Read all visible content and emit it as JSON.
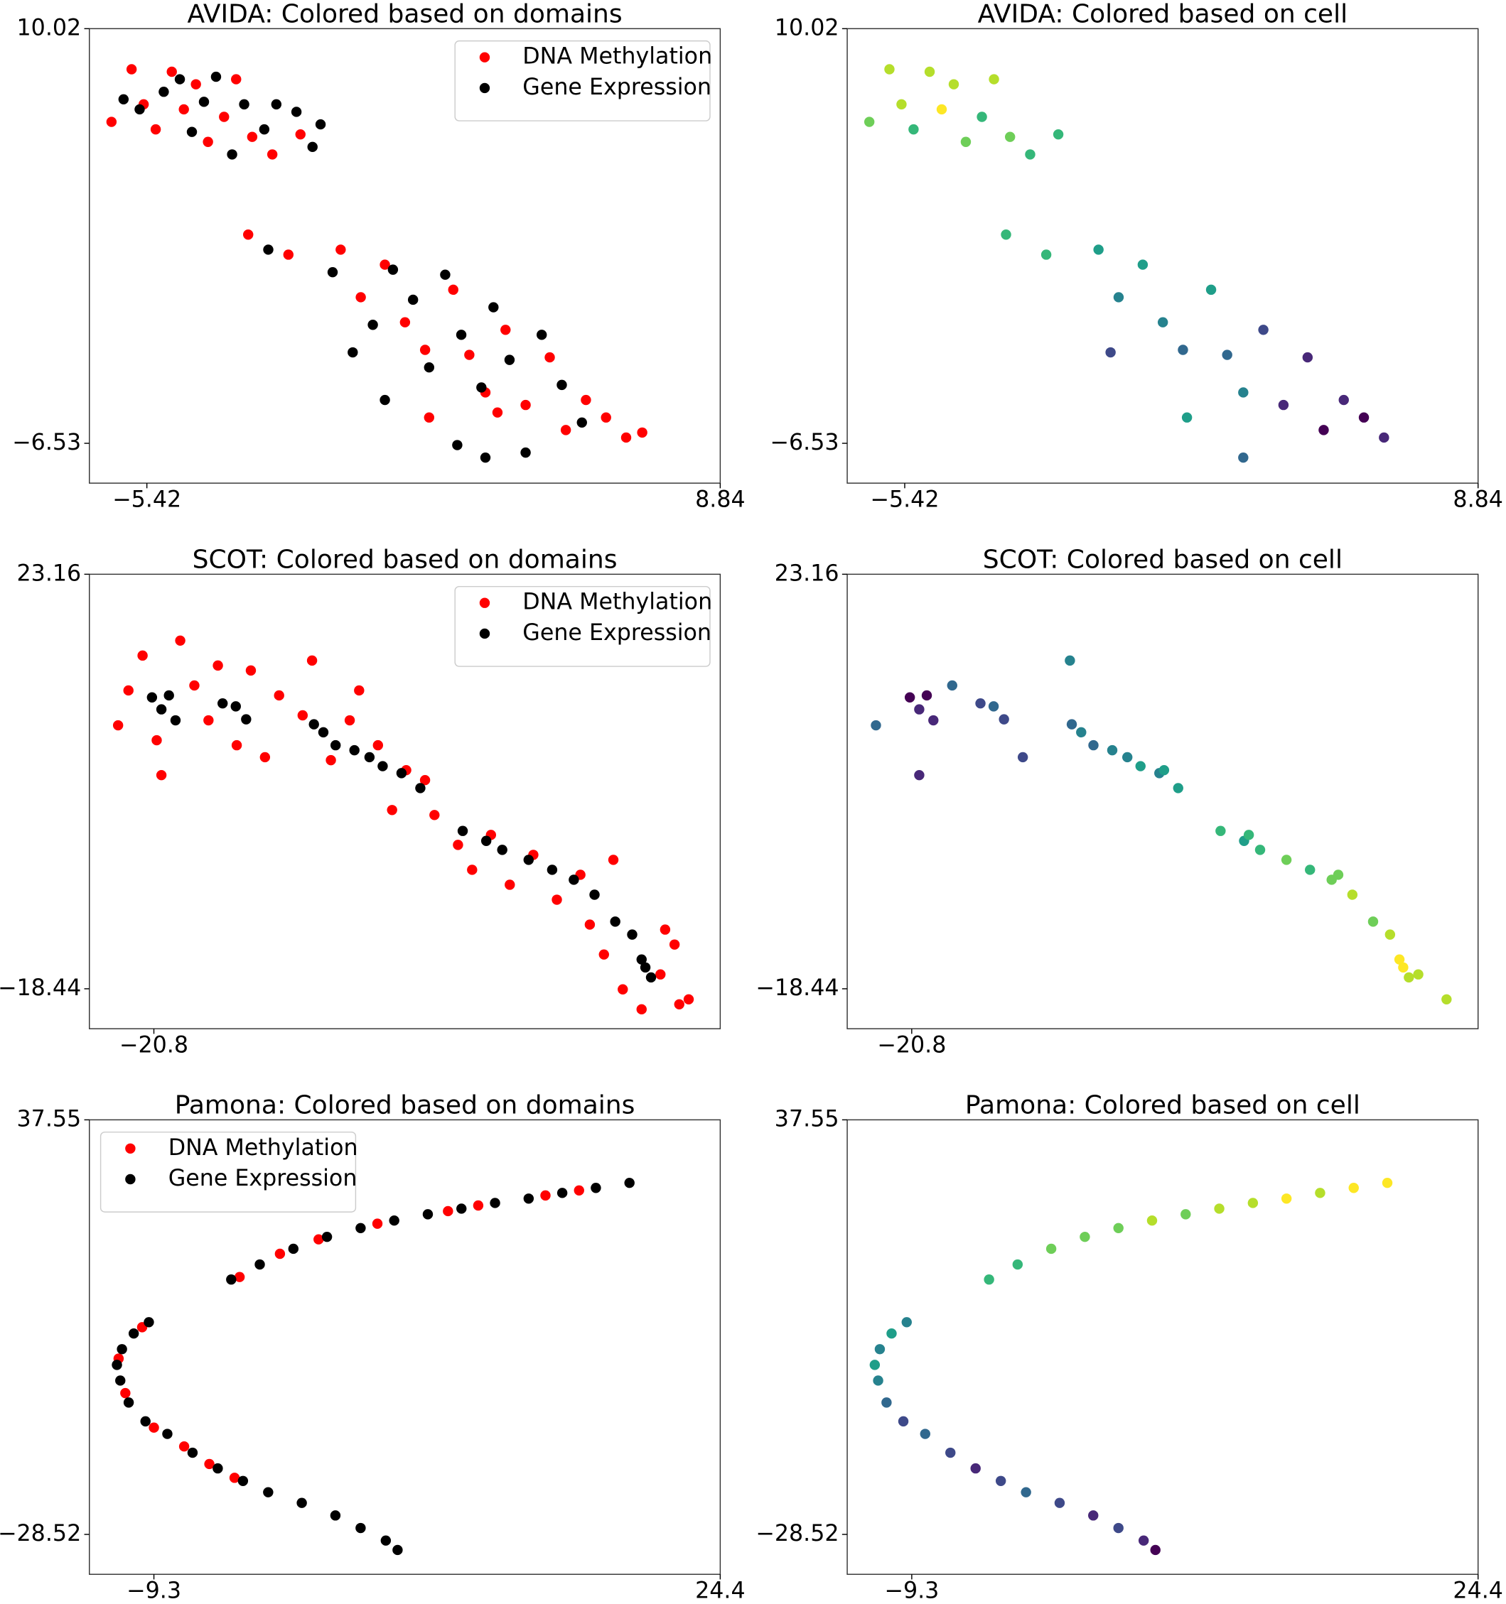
{
  "chart_data": [
    {
      "type": "scatter",
      "title": "AVIDA: Colored based on domains",
      "legend": "upper right",
      "xlim": [
        -6.85,
        8.84
      ],
      "ylim": [
        -8.12,
        10.02
      ],
      "xticks": [
        {
          "value": -5.42,
          "label": "−5.42"
        },
        8.84
      ],
      "yticks": [
        {
          "value": -6.53,
          "label": "−6.53"
        },
        10.02
      ],
      "series": [
        {
          "name": "DNA Methylation",
          "color": "#ff0000",
          "x": [
            -6.3,
            -5.8,
            -5.5,
            -5.2,
            -4.8,
            -4.5,
            -4.2,
            -3.9,
            -3.5,
            -3.2,
            -2.8,
            -2.3,
            -1.6,
            -2.9,
            -1.9,
            -0.6,
            -0.1,
            0.5,
            1.0,
            1.5,
            2.2,
            2.6,
            3.0,
            3.5,
            4.0,
            4.6,
            5.0,
            5.5,
            6.0,
            6.5,
            6.9,
            1.6,
            3.3
          ],
          "y": [
            6.3,
            8.4,
            7.0,
            6.0,
            8.3,
            6.8,
            7.8,
            5.5,
            6.5,
            8.0,
            5.7,
            5.0,
            5.8,
            1.8,
            1.0,
            1.2,
            -0.7,
            0.6,
            -1.7,
            -2.8,
            -0.4,
            -3.0,
            -4.5,
            -2.0,
            -5.0,
            -3.1,
            -6.0,
            -4.8,
            -5.5,
            -6.3,
            -6.1,
            -5.5,
            -5.3
          ]
        },
        {
          "name": "Gene Expression",
          "color": "#000000",
          "x": [
            -6.0,
            -5.6,
            -5.0,
            -4.6,
            -4.3,
            -4.0,
            -3.7,
            -3.3,
            -3.0,
            -2.5,
            -2.2,
            -1.7,
            -1.3,
            -1.1,
            -2.4,
            -0.8,
            -0.3,
            0.2,
            0.7,
            1.2,
            1.6,
            2.0,
            2.4,
            2.9,
            3.2,
            3.6,
            4.0,
            4.4,
            4.9,
            5.4,
            3.0,
            0.5,
            2.3
          ],
          "y": [
            7.2,
            6.8,
            7.5,
            8.0,
            5.9,
            7.1,
            8.1,
            5.0,
            7.0,
            6.0,
            7.0,
            6.7,
            5.3,
            6.2,
            1.2,
            0.3,
            -2.9,
            -1.8,
            0.4,
            -0.8,
            -3.5,
            0.2,
            -2.2,
            -4.3,
            -1.1,
            -3.2,
            -6.9,
            -2.2,
            -4.2,
            -5.7,
            -7.1,
            -4.8,
            -6.6
          ]
        }
      ]
    },
    {
      "type": "scatter",
      "title": "AVIDA: Colored based on cell",
      "xlim": [
        -6.85,
        8.84
      ],
      "ylim": [
        -8.12,
        10.02
      ],
      "xticks": [
        {
          "value": -5.42,
          "label": "−5.42"
        },
        8.84
      ],
      "yticks": [
        {
          "value": -6.53,
          "label": "−6.53"
        },
        10.02
      ],
      "series": [
        {
          "x": [
            -6.3,
            -5.8,
            -5.5,
            -5.2,
            -4.8,
            -4.5,
            -4.2,
            -3.9,
            -3.5,
            -3.2,
            -2.8,
            -2.3,
            -1.6,
            -2.9,
            -1.9,
            -0.6,
            -0.1,
            0.5,
            1.0,
            1.5,
            2.2,
            2.6,
            3.0,
            3.5,
            4.0,
            4.6,
            5.0,
            5.5,
            6.0,
            6.5,
            1.6,
            3.0,
            -0.3
          ],
          "y": [
            6.3,
            8.4,
            7.0,
            6.0,
            8.3,
            6.8,
            7.8,
            5.5,
            6.5,
            8.0,
            5.7,
            5.0,
            5.8,
            1.8,
            1.0,
            1.2,
            -0.7,
            0.6,
            -1.7,
            -2.8,
            -0.4,
            -3.0,
            -4.5,
            -2.0,
            -5.0,
            -3.1,
            -6.0,
            -4.8,
            -5.5,
            -6.3,
            -5.5,
            -7.1,
            -2.9
          ],
          "colors": [
            "#6ece58",
            "#b5de2b",
            "#b5de2b",
            "#35b779",
            "#b5de2b",
            "#fde725",
            "#b5de2b",
            "#6ece58",
            "#35b779",
            "#b5de2b",
            "#6ece58",
            "#35b779",
            "#35b779",
            "#35b779",
            "#35b779",
            "#1f9e89",
            "#26828e",
            "#1f9e89",
            "#26828e",
            "#31688e",
            "#1f9e89",
            "#31688e",
            "#26828e",
            "#3e4989",
            "#482878",
            "#482878",
            "#440154",
            "#482878",
            "#440154",
            "#482878",
            "#1f9e89",
            "#31688e",
            "#3e4989"
          ]
        }
      ]
    },
    {
      "type": "scatter",
      "title": "SCOT: Colored based on domains",
      "legend": "upper right",
      "xlim": [
        -27.65,
        39.35
      ],
      "ylim": [
        -22.45,
        23.16
      ],
      "xticks": [
        {
          "value": -20.8,
          "label": "−20.8"
        }
      ],
      "yticks": [
        {
          "value": -18.44,
          "label": "−18.44"
        },
        23.16
      ],
      "series": [
        {
          "name": "DNA Methylation",
          "color": "#ff0000",
          "x": [
            -24.6,
            -23.5,
            -22.0,
            -20.5,
            -20.0,
            -18.0,
            -16.5,
            -15.0,
            -14.0,
            -12.0,
            -10.5,
            -9.0,
            -7.5,
            -5.0,
            -4.0,
            -2.0,
            0.0,
            1.0,
            3.0,
            4.5,
            6.0,
            8.0,
            9.0,
            11.5,
            13.0,
            15.0,
            17.0,
            19.5,
            22.0,
            24.5,
            25.5,
            27.0,
            29.0,
            31.0,
            33.0,
            34.5,
            36.0,
            35.0,
            28.0,
            33.5
          ],
          "y": [
            8.0,
            11.5,
            15.0,
            6.5,
            3.0,
            16.5,
            12.0,
            8.5,
            14.0,
            6.0,
            13.5,
            4.8,
            11.0,
            9.0,
            14.5,
            4.5,
            8.5,
            11.5,
            6.0,
            -0.5,
            3.5,
            2.5,
            -1.0,
            -4.0,
            -6.5,
            -3.0,
            -8.0,
            -5.0,
            -9.5,
            -7.0,
            -12.0,
            -15.0,
            -18.5,
            -20.5,
            -17.0,
            -14.0,
            -19.5,
            -20.0,
            -5.5,
            -12.5
          ]
        },
        {
          "name": "Gene Expression",
          "color": "#000000",
          "x": [
            -21.0,
            -20.0,
            -19.2,
            -18.5,
            -13.5,
            -12.1,
            -11.0,
            -3.8,
            -2.8,
            -1.5,
            0.5,
            2.1,
            3.5,
            5.5,
            7.5,
            12.0,
            14.5,
            16.2,
            19.0,
            21.5,
            23.8,
            26.0,
            28.2,
            30.0,
            31.0,
            31.4,
            32.0
          ],
          "y": [
            10.8,
            9.6,
            11.0,
            8.5,
            10.2,
            9.9,
            8.6,
            8.1,
            7.3,
            6.0,
            5.5,
            4.8,
            3.9,
            3.2,
            1.7,
            -2.6,
            -3.6,
            -4.5,
            -5.5,
            -6.5,
            -7.5,
            -9.0,
            -11.7,
            -13.0,
            -15.5,
            -16.3,
            -17.3
          ]
        }
      ]
    },
    {
      "type": "scatter",
      "title": "SCOT: Colored based on cell",
      "xlim": [
        -27.65,
        39.35
      ],
      "ylim": [
        -22.45,
        23.16
      ],
      "xticks": [
        {
          "value": -20.8,
          "label": "−20.8"
        }
      ],
      "yticks": [
        {
          "value": -18.44,
          "label": "−18.44"
        },
        23.16
      ],
      "series": [
        {
          "x": [
            -21.0,
            -20.0,
            -19.2,
            -18.5,
            -13.5,
            -12.1,
            -11.0,
            -3.8,
            -2.8,
            -1.5,
            0.5,
            2.1,
            3.5,
            5.5,
            7.5,
            12.0,
            14.5,
            16.2,
            19.0,
            21.5,
            23.8,
            26.0,
            28.2,
            30.0,
            31.0,
            31.4,
            32.0,
            -24.6,
            -20.0,
            -16.5,
            -9.0,
            -4.0,
            6.0,
            15.0,
            24.5,
            33.0,
            36.0
          ],
          "y": [
            10.8,
            9.6,
            11.0,
            8.5,
            10.2,
            9.9,
            8.6,
            8.1,
            7.3,
            6.0,
            5.5,
            4.8,
            3.9,
            3.2,
            1.7,
            -2.6,
            -3.6,
            -4.5,
            -5.5,
            -6.5,
            -7.5,
            -9.0,
            -11.7,
            -13.0,
            -15.5,
            -16.3,
            -17.3,
            8.0,
            3.0,
            12.0,
            4.8,
            14.5,
            3.5,
            -3.0,
            -7.0,
            -17.0,
            -19.5
          ],
          "colors": [
            "#440154",
            "#482878",
            "#440154",
            "#482878",
            "#3e4989",
            "#31688e",
            "#3e4989",
            "#31688e",
            "#26828e",
            "#31688e",
            "#26828e",
            "#26828e",
            "#1f9e89",
            "#26828e",
            "#1f9e89",
            "#35b779",
            "#1f9e89",
            "#35b779",
            "#6ece58",
            "#35b779",
            "#6ece58",
            "#b5de2b",
            "#6ece58",
            "#b5de2b",
            "#fde725",
            "#fde725",
            "#b5de2b",
            "#31688e",
            "#482878",
            "#31688e",
            "#3e4989",
            "#26828e",
            "#1f9e89",
            "#35b779",
            "#6ece58",
            "#b5de2b",
            "#b5de2b"
          ]
        }
      ]
    },
    {
      "type": "scatter",
      "title": "Pamona: Colored based on domains",
      "legend": "upper left",
      "xlim": [
        -13.14,
        24.4
      ],
      "ylim": [
        -34.88,
        37.55
      ],
      "xticks": [
        {
          "value": -9.3,
          "label": "−9.3"
        },
        24.4
      ],
      "yticks": [
        {
          "value": -28.52,
          "label": "−28.52"
        },
        37.55
      ],
      "series": [
        {
          "name": "DNA Methylation",
          "color": "#ff0000",
          "x": [
            -4.2,
            -1.8,
            0.5,
            4,
            8.2,
            10,
            14,
            16,
            -10,
            -11.4,
            -11.0,
            -9.3,
            -7.5,
            -6,
            -4.5
          ],
          "y": [
            12.5,
            16.2,
            18.5,
            21.0,
            23.0,
            23.9,
            25.5,
            26.3,
            4.5,
            -0.5,
            -6,
            -11.5,
            -14.5,
            -17.3,
            -19.5
          ]
        },
        {
          "name": "Gene Expression",
          "color": "#000000",
          "x": [
            -4.7,
            -3,
            -1,
            1,
            3,
            5,
            7,
            9,
            11,
            13,
            15,
            17,
            19,
            -9.6,
            -10.5,
            -11.2,
            -11.5,
            -11.3,
            -10.8,
            -9.8,
            -8.5,
            -7,
            -5.5,
            -4,
            -2.5,
            -0.5,
            1.5,
            3,
            4.5,
            5.2
          ],
          "y": [
            12.1,
            14.5,
            17,
            18.9,
            20.3,
            21.5,
            22.5,
            23.4,
            24.3,
            25.0,
            25.9,
            26.7,
            27.5,
            5.3,
            3.5,
            1,
            -1.5,
            -4,
            -7.5,
            -10.5,
            -12.5,
            -15.5,
            -18,
            -20,
            -21.8,
            -23.5,
            -25.5,
            -27.5,
            -29.5,
            -31
          ]
        }
      ]
    },
    {
      "type": "scatter",
      "title": "Pamona: Colored based on cell",
      "xlim": [
        -13.14,
        24.4
      ],
      "ylim": [
        -34.88,
        37.55
      ],
      "xticks": [
        {
          "value": -9.3,
          "label": "−9.3"
        },
        24.4
      ],
      "yticks": [
        {
          "value": -28.52,
          "label": "−28.52"
        },
        37.55
      ],
      "series": [
        {
          "x": [
            -4.7,
            -3,
            -1,
            1,
            3,
            5,
            7,
            9,
            11,
            13,
            15,
            17,
            19,
            -9.6,
            -10.5,
            -11.2,
            -11.5,
            -11.3,
            -10.8,
            -9.8,
            -8.5,
            -7,
            -5.5,
            -4,
            -2.5,
            -0.5,
            1.5,
            3,
            4.5,
            5.2
          ],
          "y": [
            12.1,
            14.5,
            17,
            18.9,
            20.3,
            21.5,
            22.5,
            23.4,
            24.3,
            25.0,
            25.9,
            26.7,
            27.5,
            5.3,
            3.5,
            1,
            -1.5,
            -4,
            -7.5,
            -10.5,
            -12.5,
            -15.5,
            -18,
            -20,
            -21.8,
            -23.5,
            -25.5,
            -27.5,
            -29.5,
            -31
          ],
          "colors": [
            "#35b779",
            "#35b779",
            "#6ece58",
            "#6ece58",
            "#6ece58",
            "#b5de2b",
            "#6ece58",
            "#b5de2b",
            "#b5de2b",
            "#fde725",
            "#b5de2b",
            "#fde725",
            "#fde725",
            "#26828e",
            "#1f9e89",
            "#26828e",
            "#1f9e89",
            "#26828e",
            "#31688e",
            "#3e4989",
            "#31688e",
            "#3e4989",
            "#482878",
            "#3e4989",
            "#31688e",
            "#3e4989",
            "#482878",
            "#3e4989",
            "#482878",
            "#440154"
          ]
        }
      ]
    }
  ]
}
